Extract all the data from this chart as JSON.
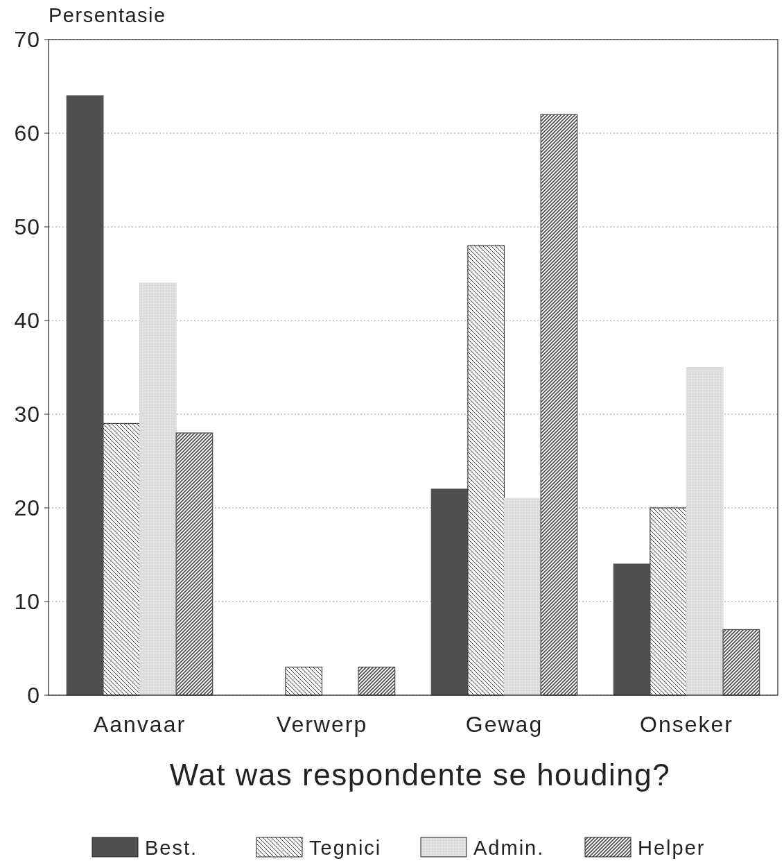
{
  "chart_data": {
    "type": "bar",
    "ylabel": "Persentasie",
    "xlabel": "Wat was respondente se houding?",
    "categories": [
      "Aanvaar",
      "Verwerp",
      "Gewag",
      "Onseker"
    ],
    "series": [
      {
        "name": "Best.",
        "color": "#505050",
        "values": [
          64,
          0,
          22,
          14
        ]
      },
      {
        "name": "Tegnici",
        "color": "#404040",
        "values": [
          29,
          3,
          48,
          20
        ]
      },
      {
        "name": "Admin.",
        "color": "#dcdcdc",
        "values": [
          44,
          0,
          21,
          35
        ]
      },
      {
        "name": "Helper",
        "color": "#4a4a4a",
        "values": [
          28,
          3,
          62,
          7
        ]
      }
    ],
    "ylim": [
      0,
      70
    ],
    "yticks": [
      0,
      10,
      20,
      30,
      40,
      50,
      60,
      70
    ],
    "grid": "y",
    "legend": "bottom"
  }
}
